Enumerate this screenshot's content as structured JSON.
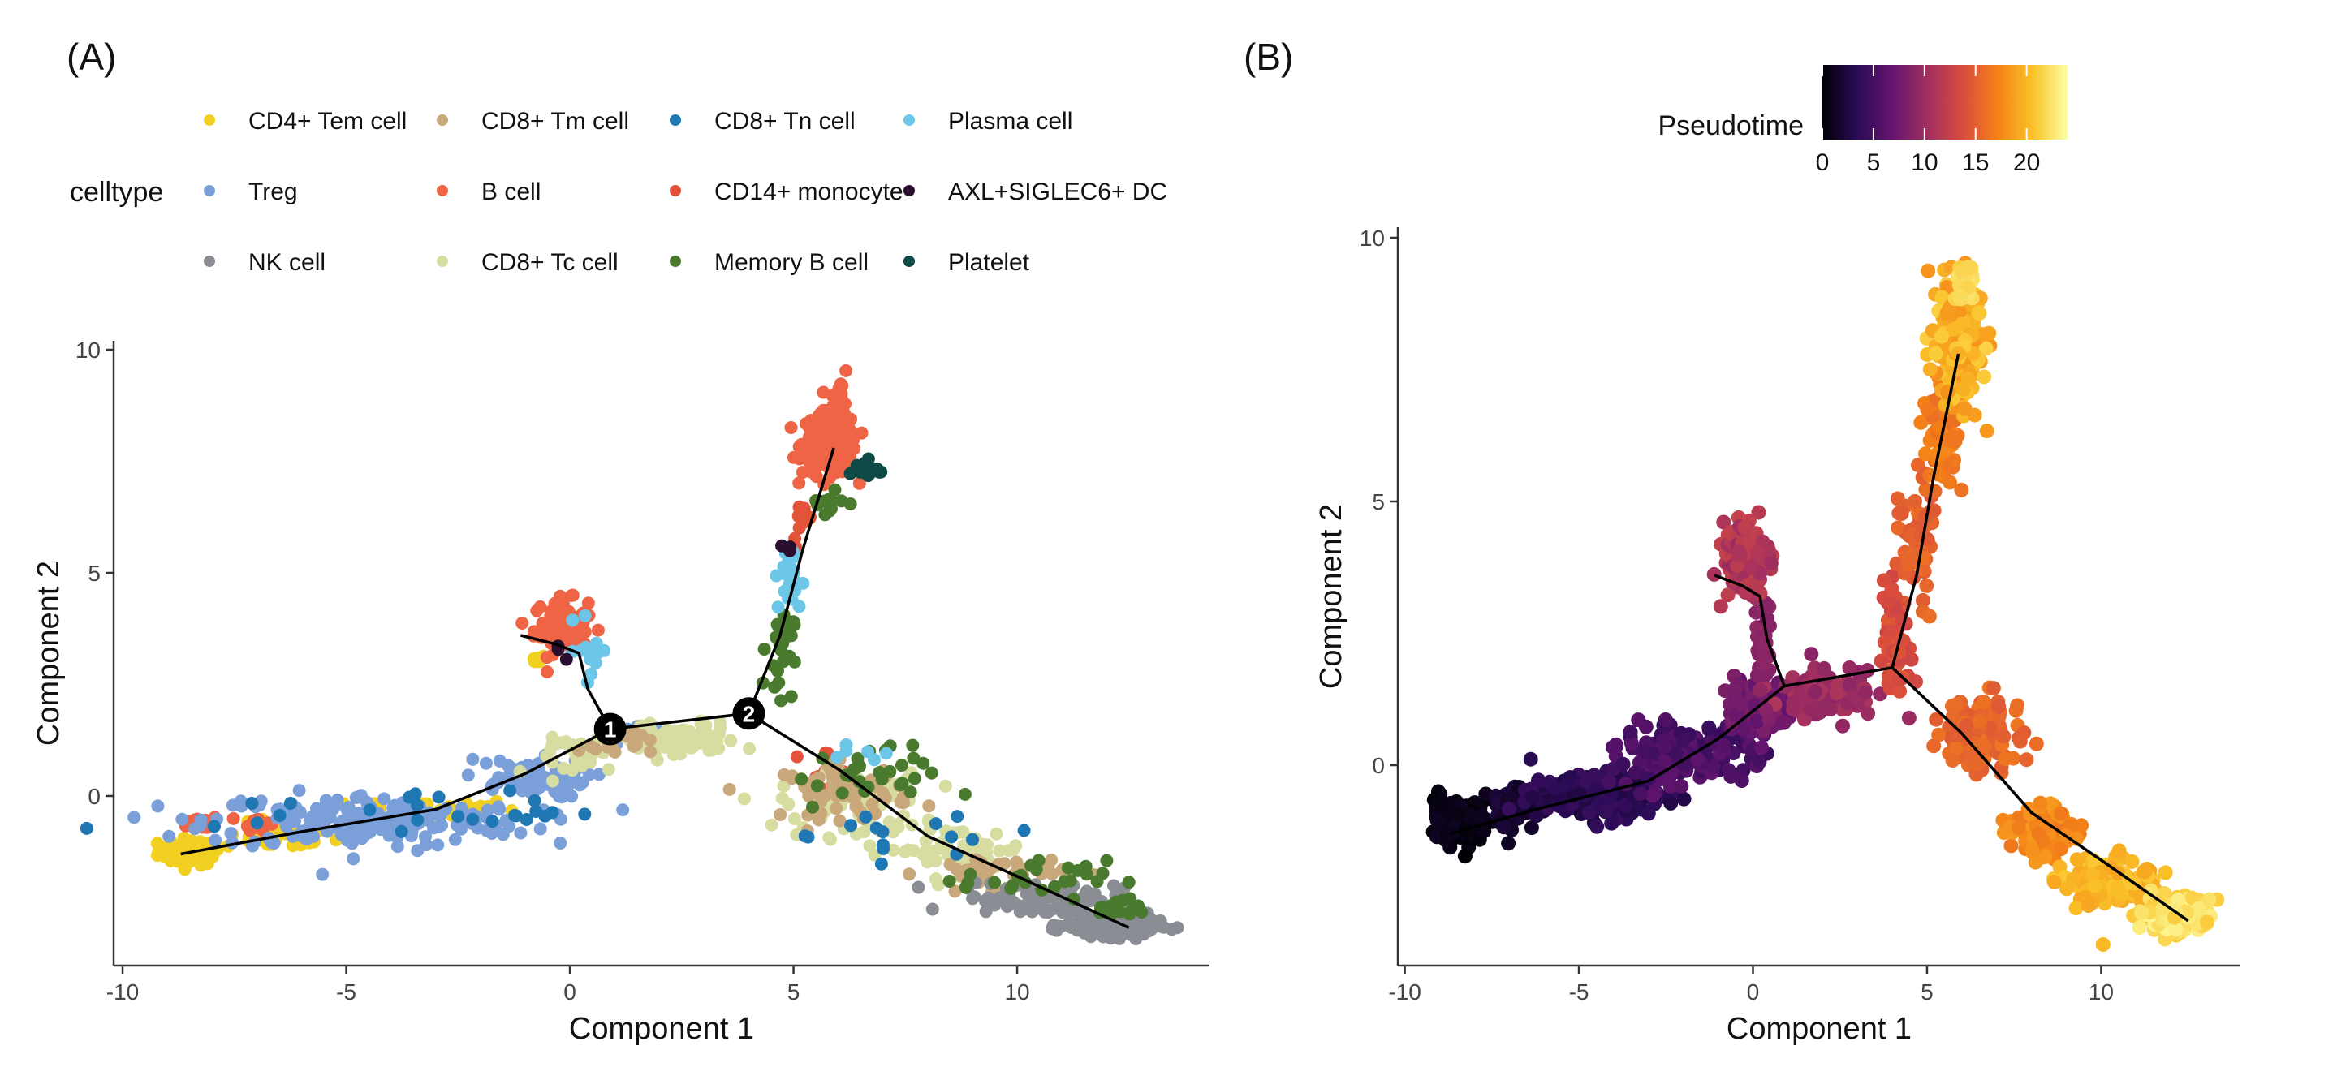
{
  "colors": {
    "axis": "#333333",
    "trajectory": "#000000",
    "branch_node_fill": "#000000",
    "branch_node_text": "#ffffff"
  },
  "panels": {
    "A": {
      "label": "(A)"
    },
    "B": {
      "label": "(B)"
    }
  },
  "legend": {
    "title": "celltype",
    "items": [
      {
        "name": "CD4+ Tem cell",
        "color": "#F2D022"
      },
      {
        "name": "CD8+ Tm cell",
        "color": "#C9A87C"
      },
      {
        "name": "CD8+ Tn cell",
        "color": "#1F78B4"
      },
      {
        "name": "Plasma cell",
        "color": "#6CC6E8"
      },
      {
        "name": "Treg",
        "color": "#7B9FD8"
      },
      {
        "name": "B cell",
        "color": "#EE6445"
      },
      {
        "name": "CD14+ monocyte",
        "color": "#E3533A"
      },
      {
        "name": "AXL+SIGLEC6+ DC",
        "color": "#2A0F2E"
      },
      {
        "name": "NK cell",
        "color": "#8A8D93"
      },
      {
        "name": "CD8+ Tc cell",
        "color": "#D7DDA0"
      },
      {
        "name": "Memory B cell",
        "color": "#4A7A2E"
      },
      {
        "name": "Platelet",
        "color": "#0D4A46"
      }
    ]
  },
  "colorbar": {
    "title": "Pseudotime",
    "ticks": [
      "0",
      "5",
      "10",
      "15",
      "20"
    ],
    "min": 0,
    "max": 24,
    "stops": [
      "#000004",
      "#2B0B57",
      "#65156E",
      "#A12F60",
      "#D84C3E",
      "#F48118",
      "#FAC128",
      "#FCFFA4"
    ]
  },
  "chart_data": [
    {
      "type": "scatter",
      "title": "(A)",
      "xlabel": "Component 1",
      "ylabel": "Component 2",
      "xlim": [
        -10.2,
        14.3
      ],
      "ylim": [
        -3.8,
        10.2
      ],
      "xticks": [
        -10,
        -5,
        0,
        5,
        10
      ],
      "xtick_labels": [
        "-10",
        "-5",
        "0",
        "5",
        "10"
      ],
      "yticks": [
        0,
        5,
        10
      ],
      "ytick_labels": [
        "0",
        "5",
        "10"
      ],
      "color_by": "celltype",
      "trajectory": [
        [
          [
            -8.7,
            -1.3
          ],
          [
            -6,
            -0.8
          ],
          [
            -3,
            -0.3
          ],
          [
            -1,
            0.5
          ],
          [
            0.9,
            1.5
          ],
          [
            4.0,
            1.85
          ]
        ],
        [
          [
            0.9,
            1.5
          ],
          [
            0.4,
            2.4
          ],
          [
            0.2,
            3.2
          ],
          [
            -0.3,
            3.4
          ],
          [
            -1.1,
            3.6
          ]
        ],
        [
          [
            4.0,
            1.85
          ],
          [
            4.7,
            3.6
          ],
          [
            5.2,
            5.5
          ],
          [
            5.9,
            7.8
          ]
        ],
        [
          [
            4.0,
            1.85
          ],
          [
            6.0,
            0.6
          ],
          [
            8.0,
            -0.9
          ],
          [
            10.0,
            -1.8
          ],
          [
            12.5,
            -2.95
          ]
        ]
      ],
      "branch_points": [
        {
          "label": "1",
          "x": 0.9,
          "y": 1.5
        },
        {
          "label": "2",
          "x": 4.0,
          "y": 1.85
        }
      ],
      "clusters": [
        {
          "celltype": "CD4+ Tem cell",
          "n": 70,
          "cx": -8.5,
          "cy": -1.25,
          "sx": 0.35,
          "sy": 0.15
        },
        {
          "celltype": "CD4+ Tem cell",
          "n": 40,
          "cx": -6.5,
          "cy": -0.9,
          "sx": 0.6,
          "sy": 0.15
        },
        {
          "celltype": "CD4+ Tem cell",
          "n": 30,
          "cx": -3.0,
          "cy": -0.3,
          "sx": 0.9,
          "sy": 0.12
        },
        {
          "celltype": "CD4+ Tem cell",
          "n": 6,
          "cx": -0.7,
          "cy": 3.1,
          "sx": 0.1,
          "sy": 0.08
        },
        {
          "celltype": "B cell",
          "n": 25,
          "cx": -8.2,
          "cy": -0.6,
          "sx": 0.18,
          "sy": 0.08
        },
        {
          "celltype": "B cell",
          "n": 15,
          "cx": -7.0,
          "cy": -0.6,
          "sx": 0.15,
          "sy": 0.08
        },
        {
          "celltype": "B cell",
          "n": 80,
          "cx": -0.2,
          "cy": 3.8,
          "sx": 0.3,
          "sy": 0.3
        },
        {
          "celltype": "B cell",
          "n": 220,
          "cx": 5.8,
          "cy": 7.9,
          "sx": 0.3,
          "sy": 0.35
        },
        {
          "celltype": "B cell",
          "n": 12,
          "cx": 6.1,
          "cy": 9.1,
          "sx": 0.12,
          "sy": 0.18
        },
        {
          "celltype": "CD14+ monocyte",
          "n": 12,
          "cx": 5.2,
          "cy": 6.1,
          "sx": 0.12,
          "sy": 0.25
        },
        {
          "celltype": "CD14+ monocyte",
          "n": 12,
          "cx": 5.6,
          "cy": 0.65,
          "sx": 0.4,
          "sy": 0.2
        },
        {
          "celltype": "Treg",
          "n": 200,
          "cx": -4.5,
          "cy": -0.55,
          "sx": 1.8,
          "sy": 0.3
        },
        {
          "celltype": "Treg",
          "n": 70,
          "cx": -1.0,
          "cy": 0.4,
          "sx": 0.7,
          "sy": 0.22
        },
        {
          "celltype": "Treg",
          "n": 30,
          "cx": 1.6,
          "cy": 1.35,
          "sx": 0.45,
          "sy": 0.12
        },
        {
          "celltype": "CD8+ Tc cell",
          "n": 90,
          "cx": 2.3,
          "cy": 1.25,
          "sx": 0.75,
          "sy": 0.2
        },
        {
          "celltype": "CD8+ Tc cell",
          "n": 70,
          "cx": 6.3,
          "cy": -0.2,
          "sx": 0.8,
          "sy": 0.35
        },
        {
          "celltype": "CD8+ Tc cell",
          "n": 60,
          "cx": 8.6,
          "cy": -1.2,
          "sx": 0.8,
          "sy": 0.25
        },
        {
          "celltype": "CD8+ Tc cell",
          "n": 30,
          "cx": 0.3,
          "cy": 0.9,
          "sx": 0.5,
          "sy": 0.2
        },
        {
          "celltype": "CD8+ Tm cell",
          "n": 60,
          "cx": 6.2,
          "cy": 0.1,
          "sx": 0.7,
          "sy": 0.3
        },
        {
          "celltype": "CD8+ Tm cell",
          "n": 40,
          "cx": 9.5,
          "cy": -1.7,
          "sx": 0.8,
          "sy": 0.2
        },
        {
          "celltype": "CD8+ Tm cell",
          "n": 20,
          "cx": 1.0,
          "cy": 1.2,
          "sx": 0.4,
          "sy": 0.15
        },
        {
          "celltype": "NK cell",
          "n": 200,
          "cx": 12.1,
          "cy": -2.9,
          "sx": 0.5,
          "sy": 0.12
        },
        {
          "celltype": "NK cell",
          "n": 80,
          "cx": 10.5,
          "cy": -2.3,
          "sx": 0.9,
          "sy": 0.2
        },
        {
          "celltype": "Memory B cell",
          "n": 30,
          "cx": 4.7,
          "cy": 3.3,
          "sx": 0.15,
          "sy": 0.5
        },
        {
          "celltype": "Memory B cell",
          "n": 12,
          "cx": 5.7,
          "cy": 6.6,
          "sx": 0.2,
          "sy": 0.2
        },
        {
          "celltype": "Memory B cell",
          "n": 30,
          "cx": 6.6,
          "cy": 0.4,
          "sx": 0.8,
          "sy": 0.35
        },
        {
          "celltype": "Memory B cell",
          "n": 25,
          "cx": 10.4,
          "cy": -1.85,
          "sx": 0.8,
          "sy": 0.2
        },
        {
          "celltype": "Memory B cell",
          "n": 15,
          "cx": 12.3,
          "cy": -2.5,
          "sx": 0.4,
          "sy": 0.12
        },
        {
          "celltype": "Plasma cell",
          "n": 25,
          "cx": 4.9,
          "cy": 4.8,
          "sx": 0.15,
          "sy": 0.4
        },
        {
          "celltype": "Plasma cell",
          "n": 15,
          "cx": 0.5,
          "cy": 3.3,
          "sx": 0.18,
          "sy": 0.35
        },
        {
          "celltype": "Plasma cell",
          "n": 6,
          "cx": 6.4,
          "cy": 1.0,
          "sx": 0.3,
          "sy": 0.1
        },
        {
          "celltype": "CD8+ Tn cell",
          "n": 25,
          "cx": -3.5,
          "cy": -0.35,
          "sx": 2.2,
          "sy": 0.25
        },
        {
          "celltype": "CD8+ Tn cell",
          "n": 15,
          "cx": 7.5,
          "cy": -0.8,
          "sx": 1.5,
          "sy": 0.3
        },
        {
          "celltype": "Platelet",
          "n": 15,
          "cx": 6.6,
          "cy": 7.3,
          "sx": 0.18,
          "sy": 0.12
        },
        {
          "celltype": "AXL+SIGLEC6+ DC",
          "n": 3,
          "cx": 5.0,
          "cy": 5.5,
          "sx": 0.1,
          "sy": 0.2
        },
        {
          "celltype": "AXL+SIGLEC6+ DC",
          "n": 3,
          "cx": 0.0,
          "cy": 3.3,
          "sx": 0.15,
          "sy": 0.1
        }
      ]
    },
    {
      "type": "scatter",
      "title": "(B)",
      "xlabel": "Component 1",
      "ylabel": "Component 2",
      "xlim": [
        -10.2,
        14.0
      ],
      "ylim": [
        -3.8,
        10.2
      ],
      "xticks": [
        -10,
        -5,
        0,
        5,
        10
      ],
      "xtick_labels": [
        "-10",
        "-5",
        "0",
        "5",
        "10"
      ],
      "yticks": [
        0,
        5,
        10
      ],
      "ytick_labels": [
        "0",
        "5",
        "10"
      ],
      "color_by": "Pseudotime",
      "trajectory": [
        [
          [
            -8.7,
            -1.3
          ],
          [
            -6,
            -0.8
          ],
          [
            -3,
            -0.3
          ],
          [
            -1,
            0.5
          ],
          [
            0.9,
            1.5
          ],
          [
            4.0,
            1.85
          ]
        ],
        [
          [
            0.9,
            1.5
          ],
          [
            0.4,
            2.4
          ],
          [
            0.2,
            3.2
          ],
          [
            -0.3,
            3.4
          ],
          [
            -1.1,
            3.6
          ]
        ],
        [
          [
            4.0,
            1.85
          ],
          [
            4.7,
            3.6
          ],
          [
            5.2,
            5.5
          ],
          [
            5.9,
            7.8
          ]
        ],
        [
          [
            4.0,
            1.85
          ],
          [
            6.0,
            0.6
          ],
          [
            8.0,
            -0.9
          ],
          [
            10.0,
            -1.8
          ],
          [
            12.5,
            -2.95
          ]
        ]
      ],
      "clusters": [
        {
          "n": 150,
          "cx": -8.3,
          "cy": -1.05,
          "sx": 0.45,
          "sy": 0.2,
          "pt": [
            0.0,
            1.2
          ]
        },
        {
          "n": 90,
          "cx": -6.9,
          "cy": -0.75,
          "sx": 0.3,
          "sy": 0.18,
          "pt": [
            1.2,
            2.4
          ]
        },
        {
          "n": 180,
          "cx": -4.6,
          "cy": -0.6,
          "sx": 0.9,
          "sy": 0.2,
          "pt": [
            2.4,
            4.2
          ]
        },
        {
          "n": 160,
          "cx": -2.0,
          "cy": 0.2,
          "sx": 1.0,
          "sy": 0.3,
          "pt": [
            4.2,
            6.5
          ]
        },
        {
          "n": 90,
          "cx": 0.2,
          "cy": 1.1,
          "sx": 0.5,
          "sy": 0.25,
          "pt": [
            6.5,
            8.5
          ]
        },
        {
          "n": 110,
          "cx": 2.1,
          "cy": 1.35,
          "sx": 0.75,
          "sy": 0.2,
          "pt": [
            9.0,
            11.0
          ]
        },
        {
          "n": 40,
          "cx": 0.3,
          "cy": 2.3,
          "sx": 0.12,
          "sy": 0.4,
          "pt": [
            8.5,
            9.5
          ]
        },
        {
          "n": 160,
          "cx": -0.2,
          "cy": 3.9,
          "sx": 0.32,
          "sy": 0.32,
          "pt": [
            10.0,
            12.5
          ]
        },
        {
          "n": 70,
          "cx": 4.1,
          "cy": 2.4,
          "sx": 0.2,
          "sy": 0.6,
          "pt": [
            13.0,
            14.5
          ]
        },
        {
          "n": 60,
          "cx": 4.7,
          "cy": 4.5,
          "sx": 0.25,
          "sy": 0.6,
          "pt": [
            14.5,
            16.0
          ]
        },
        {
          "n": 70,
          "cx": 5.4,
          "cy": 6.2,
          "sx": 0.25,
          "sy": 0.5,
          "pt": [
            16.0,
            17.5
          ]
        },
        {
          "n": 260,
          "cx": 5.9,
          "cy": 8.0,
          "sx": 0.32,
          "sy": 0.55,
          "pt": [
            18.0,
            21.5
          ]
        },
        {
          "n": 30,
          "cx": 6.1,
          "cy": 9.2,
          "sx": 0.15,
          "sy": 0.2,
          "pt": [
            21.5,
            22.5
          ]
        },
        {
          "n": 120,
          "cx": 6.6,
          "cy": 0.6,
          "sx": 0.55,
          "sy": 0.35,
          "pt": [
            14.5,
            16.5
          ]
        },
        {
          "n": 120,
          "cx": 8.3,
          "cy": -1.2,
          "sx": 0.5,
          "sy": 0.25,
          "pt": [
            16.5,
            18.5
          ]
        },
        {
          "n": 130,
          "cx": 10.4,
          "cy": -2.2,
          "sx": 0.6,
          "sy": 0.25,
          "pt": [
            19.0,
            21.0
          ]
        },
        {
          "n": 190,
          "cx": 12.1,
          "cy": -2.85,
          "sx": 0.5,
          "sy": 0.15,
          "pt": [
            21.0,
            23.5
          ]
        }
      ]
    }
  ]
}
